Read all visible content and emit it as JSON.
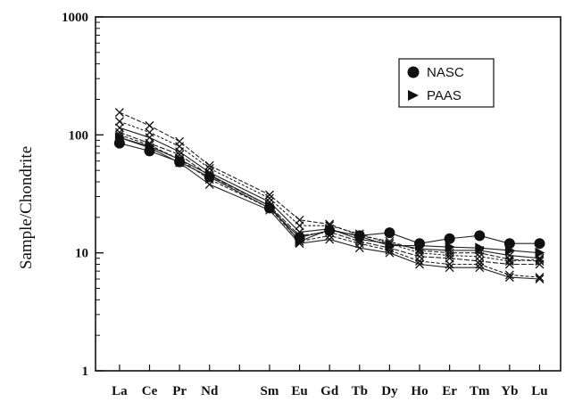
{
  "chart_data": {
    "type": "line",
    "title": "",
    "xlabel": "",
    "ylabel": "Sample/Chondrite",
    "yscale": "log",
    "ylim": [
      1,
      1000
    ],
    "yticks": [
      1,
      10,
      100,
      1000
    ],
    "ytick_labels": [
      "1",
      "10",
      "100",
      "1000"
    ],
    "grid": false,
    "legend_position": "top-right",
    "categories": [
      "La",
      "Ce",
      "Pr",
      "Nd",
      "Sm",
      "Eu",
      "Gd",
      "Tb",
      "Dy",
      "Ho",
      "Er",
      "Tm",
      "Yb",
      "Lu"
    ],
    "category_positions": [
      1,
      2,
      3,
      4,
      6,
      7,
      8,
      9,
      10,
      11,
      12,
      13,
      14,
      15
    ],
    "series": [
      {
        "name": "NASC",
        "marker": "circle",
        "values": [
          85,
          73,
          59,
          44,
          24,
          13.5,
          15.5,
          14,
          14.8,
          12,
          13.2,
          14,
          12,
          12
        ]
      },
      {
        "name": "PAAS",
        "marker": "triangle-right",
        "values": [
          95,
          80,
          62,
          46,
          25,
          12.5,
          15.8,
          13.8,
          11.5,
          11.5,
          11.2,
          11,
          10.5,
          10
        ]
      },
      {
        "values": [
          155,
          120,
          88,
          55,
          31,
          19,
          17.5,
          14,
          12.5,
          10.5,
          10,
          10,
          8.8,
          8.5
        ]
      },
      {
        "values": [
          130,
          105,
          80,
          52,
          29,
          17,
          17,
          14.5,
          12,
          10,
          9.5,
          9.3,
          8.5,
          8.8
        ]
      },
      {
        "values": [
          115,
          95,
          72,
          48,
          27,
          15,
          16,
          13,
          12,
          10.8,
          10.5,
          10.5,
          9.5,
          9
        ]
      },
      {
        "values": [
          105,
          85,
          68,
          45,
          25,
          14,
          15,
          12.5,
          11,
          9.3,
          9,
          8.5,
          8,
          8
        ]
      },
      {
        "values": [
          100,
          82,
          62,
          42,
          24,
          12.5,
          14,
          12,
          10.5,
          8.5,
          8,
          8,
          6.5,
          6.2
        ]
      },
      {
        "values": [
          95,
          78,
          58,
          38,
          23,
          12,
          13,
          11,
          10,
          8,
          7.5,
          7.5,
          6.2,
          6
        ]
      }
    ]
  }
}
